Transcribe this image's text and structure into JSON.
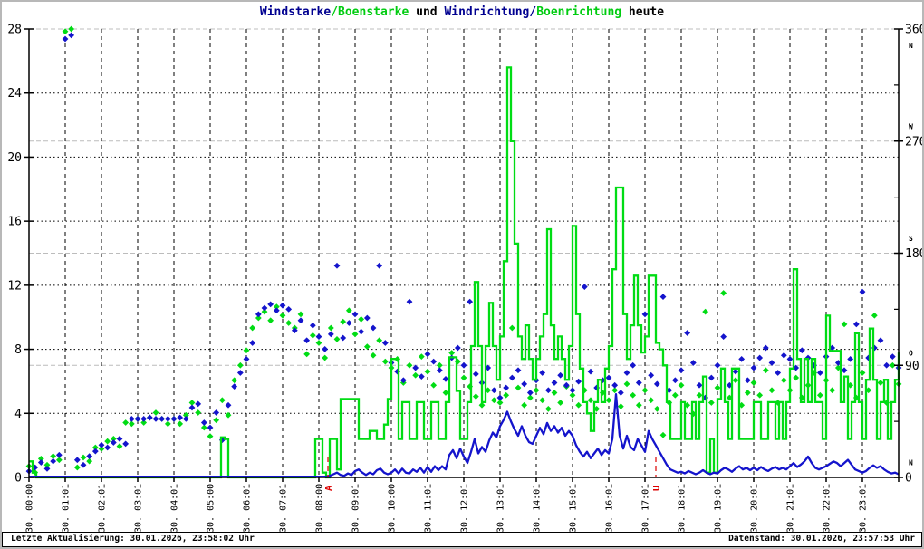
{
  "title": {
    "part1": "Windstarke",
    "slash1": "/",
    "part2": "Boenstarke",
    "mid": " und ",
    "part3": "Windrichtung",
    "slash2": "/",
    "part4": "Boenrichtung",
    "suffix": " heute"
  },
  "statusbar": {
    "left": "Letzte Aktualisierung: 30.01.2026, 23:58:02 Uhr",
    "right": "Datenstand: 30.01.2026, 23:57:53 Uhr"
  },
  "chart_data": {
    "type": "line+scatter",
    "x_axis": {
      "unit": "hour",
      "start": 0,
      "end": 24,
      "tick_step": 1,
      "labels": [
        "30. 00:00",
        "30. 01:01",
        "30. 02:01",
        "30. 03:01",
        "30. 04:01",
        "30. 05:00",
        "30. 06:01",
        "30. 07:01",
        "30. 08:00",
        "30. 09:01",
        "30. 10:00",
        "30. 11:01",
        "30. 12:01",
        "30. 13:01",
        "30. 14:01",
        "30. 15:01",
        "30. 16:01",
        "30. 17:01",
        "30. 18:01",
        "30. 19:01",
        "30. 20:01",
        "30. 21:01",
        "30. 22:01",
        "30. 23:01"
      ]
    },
    "y_left": {
      "min": 0,
      "max": 28,
      "ticks": [
        0,
        4,
        8,
        12,
        16,
        20,
        24,
        28
      ]
    },
    "y_right": {
      "min": 0,
      "max": 360,
      "ticks": [
        0,
        90,
        180,
        270,
        360
      ],
      "compass": [
        {
          "deg": 347,
          "text": "N"
        },
        {
          "deg": 282,
          "text": "W"
        },
        {
          "deg": 192,
          "text": "S"
        },
        {
          "deg": 100,
          "text": "O"
        },
        {
          "deg": 12,
          "text": "N"
        }
      ]
    },
    "colors": {
      "wind": "#1414cc",
      "gust": "#00dc14",
      "grid": "#000000",
      "grid_right": "#bcbcbc",
      "sun": "#dd0000",
      "title_blue": "#000090",
      "title_green": "#00cc10"
    },
    "sun_markers": [
      {
        "hour": 8.25,
        "label": "A"
      },
      {
        "hour": 17.3,
        "label": "U"
      }
    ],
    "series": {
      "boenstarke_line": {
        "name": "Boenstarke",
        "axis": "left",
        "color_key": "gust",
        "render": "step",
        "step_hours": 0.1,
        "values": [
          1,
          0.3,
          0,
          0,
          0,
          0,
          0,
          0,
          0,
          0,
          0,
          0,
          0,
          0,
          0,
          0,
          0,
          0,
          0,
          0,
          0,
          0,
          0,
          0,
          0,
          0,
          0,
          0,
          0,
          0,
          0,
          0,
          0,
          0,
          0,
          0,
          0,
          0,
          0,
          0,
          0,
          0,
          0,
          0,
          0,
          0,
          0,
          0,
          0,
          0,
          0,
          0,
          0,
          2.5,
          2.4,
          0,
          0,
          0,
          0,
          0,
          0,
          0,
          0,
          0,
          0,
          0,
          0,
          0,
          0,
          0,
          0,
          0,
          0,
          0,
          0,
          0,
          0,
          0,
          0,
          2.4,
          2.4,
          0.3,
          0,
          2.4,
          2.4,
          0.5,
          4.9,
          4.9,
          4.9,
          4.9,
          4.9,
          2.4,
          2.4,
          2.4,
          2.9,
          2.9,
          2.4,
          2.4,
          3.3,
          4.9,
          7.4,
          7.4,
          2.4,
          4.7,
          4.7,
          2.4,
          2.4,
          4.7,
          4.7,
          2.4,
          2.4,
          4.7,
          4.7,
          2.4,
          2.4,
          4.7,
          7.5,
          7.5,
          5.4,
          2.4,
          2.4,
          4.7,
          8.2,
          12.2,
          8.2,
          4.7,
          8.2,
          10.9,
          8.2,
          6.1,
          8.8,
          13.5,
          25.6,
          21,
          14.6,
          8.8,
          7.4,
          9.5,
          7.4,
          6.1,
          7.4,
          8.8,
          10.2,
          15.5,
          9.5,
          7.4,
          8.8,
          7.4,
          6.1,
          8.2,
          15.7,
          10.2,
          6.8,
          4.7,
          4,
          2.9,
          4.7,
          6.1,
          4.7,
          6.8,
          8.2,
          13,
          18.1,
          18.1,
          10.2,
          7.4,
          9.5,
          12.6,
          9.5,
          7.8,
          8.8,
          12.6,
          12.6,
          8.4,
          8,
          7,
          4.7,
          2.4,
          2.4,
          2.4,
          4.7,
          2.4,
          2.4,
          4.7,
          2.4,
          4.7,
          6.3,
          0.3,
          2.4,
          0.3,
          4.9,
          6.8,
          4.7,
          2.4,
          6.8,
          6.8,
          2.4,
          2.4,
          2.4,
          2.4,
          4.7,
          4.7,
          2.4,
          2.4,
          4.7,
          4.7,
          2.4,
          4.7,
          2.4,
          4.7,
          6.8,
          13,
          7.4,
          4.7,
          7.4,
          4.7,
          7.4,
          4.7,
          4.7,
          2.4,
          10.1,
          7.9,
          7.9,
          7.9,
          4.7,
          6.3,
          2.4,
          4.7,
          9,
          4.7,
          2.4,
          6.1,
          9.3,
          6.1,
          2.4,
          4.7,
          6.1,
          2.4,
          4.7,
          6.1,
          7.8
        ]
      },
      "windstarke_line": {
        "name": "Windstarke",
        "axis": "left",
        "color_key": "wind",
        "render": "linear",
        "step_hours": 0.1,
        "values": [
          0.05,
          0.05,
          0.05,
          0.05,
          0.05,
          0.05,
          0.05,
          0.05,
          0.05,
          0.05,
          0.05,
          0.05,
          0.05,
          0.05,
          0.05,
          0.05,
          0.05,
          0.05,
          0.05,
          0.05,
          0.05,
          0.05,
          0.05,
          0.05,
          0.05,
          0.05,
          0.05,
          0.05,
          0.05,
          0.05,
          0.05,
          0.05,
          0.05,
          0.05,
          0.05,
          0.05,
          0.05,
          0.05,
          0.05,
          0.05,
          0.05,
          0.05,
          0.05,
          0.05,
          0.05,
          0.05,
          0.05,
          0.05,
          0.05,
          0.05,
          0.05,
          0.05,
          0.05,
          0.05,
          0.05,
          0.05,
          0.05,
          0.05,
          0.05,
          0.05,
          0.05,
          0.05,
          0.05,
          0.05,
          0.05,
          0.05,
          0.05,
          0.05,
          0.05,
          0.05,
          0.05,
          0.05,
          0.05,
          0.05,
          0.05,
          0.05,
          0.05,
          0.05,
          0.05,
          0.05,
          0.05,
          0.05,
          0.05,
          0.1,
          0.2,
          0.3,
          0.15,
          0.1,
          0.25,
          0.15,
          0.4,
          0.5,
          0.3,
          0.15,
          0.3,
          0.2,
          0.45,
          0.55,
          0.3,
          0.2,
          0.3,
          0.5,
          0.25,
          0.55,
          0.3,
          0.25,
          0.5,
          0.35,
          0.6,
          0.3,
          0.65,
          0.35,
          0.7,
          0.45,
          0.7,
          0.5,
          1.4,
          1.7,
          1.2,
          1.8,
          1.3,
          0.9,
          1.6,
          2.4,
          1.5,
          1.9,
          1.6,
          2.3,
          2.8,
          2.5,
          3.2,
          3.6,
          4.1,
          3.5,
          3,
          2.6,
          3.2,
          2.6,
          2.2,
          2.1,
          2.6,
          3.1,
          2.7,
          3.4,
          2.9,
          3.2,
          2.8,
          3.1,
          2.6,
          2.9,
          2.6,
          2,
          1.6,
          1.3,
          1.6,
          1.2,
          1.5,
          1.8,
          1.4,
          1.7,
          1.5,
          2.4,
          5.2,
          2.6,
          1.8,
          2.6,
          1.9,
          1.7,
          2.4,
          2,
          1.6,
          2.9,
          2.4,
          2,
          1.6,
          1.2,
          0.8,
          0.5,
          0.4,
          0.3,
          0.35,
          0.25,
          0.4,
          0.3,
          0.2,
          0.3,
          0.45,
          0.3,
          0.2,
          0.3,
          0.25,
          0.45,
          0.6,
          0.5,
          0.35,
          0.55,
          0.7,
          0.5,
          0.6,
          0.45,
          0.6,
          0.45,
          0.65,
          0.5,
          0.4,
          0.55,
          0.65,
          0.5,
          0.6,
          0.5,
          0.7,
          0.9,
          0.65,
          0.8,
          1,
          1.3,
          0.9,
          0.6,
          0.5,
          0.6,
          0.7,
          0.85,
          1,
          0.9,
          0.7,
          0.9,
          1.1,
          0.8,
          0.5,
          0.4,
          0.3,
          0.4,
          0.6,
          0.75,
          0.6,
          0.7,
          0.5,
          0.35,
          0.25,
          0.3,
          0.2
        ]
      },
      "boenrichtung_dots": {
        "name": "Boenrichtung",
        "axis": "right",
        "color_key": "gust",
        "render": "diamond",
        "step_hours": 0.1666667,
        "values": [
          9,
          4,
          15,
          10,
          17,
          14,
          358,
          360,
          8,
          16,
          13,
          24,
          23,
          29,
          31,
          25,
          44,
          43,
          47,
          44,
          48,
          52,
          47,
          43,
          47,
          43,
          50,
          60,
          52,
          40,
          33,
          46,
          62,
          50,
          78,
          90,
          102,
          120,
          128,
          133,
          126,
          137,
          130,
          124,
          120,
          131,
          99,
          114,
          108,
          96,
          120,
          111,
          125,
          134,
          115,
          127,
          105,
          98,
          110,
          93,
          88,
          95,
          76,
          90,
          82,
          97,
          85,
          74,
          90,
          68,
          100,
          93,
          80,
          73,
          65,
          58,
          70,
          62,
          60,
          66,
          120,
          72,
          58,
          64,
          70,
          62,
          55,
          68,
          60,
          73,
          66,
          58,
          70,
          62,
          55,
          68,
          62,
          70,
          57,
          75,
          66,
          58,
          70,
          62,
          55,
          34,
          60,
          66,
          74,
          58,
          51,
          66,
          133,
          60,
          72,
          148,
          64,
          78,
          58,
          68,
          76,
          66,
          86,
          70,
          60,
          78,
          70,
          80,
          64,
          74,
          84,
          66,
          78,
          70,
          88,
          123,
          74,
          64,
          84,
          70,
          130,
          76,
          60,
          90,
          75
        ]
      },
      "windrichtung_dots": {
        "name": "Windrichtung",
        "axis": "right",
        "color_key": "wind",
        "render": "diamond",
        "step_hours": 0.1666667,
        "values": [
          5,
          8,
          12,
          7,
          13,
          18,
          352,
          355,
          14,
          10,
          17,
          21,
          26,
          24,
          28,
          31,
          27,
          47,
          47,
          47,
          48,
          47,
          47,
          47,
          47,
          48,
          47,
          56,
          59,
          44,
          40,
          52,
          30,
          58,
          73,
          84,
          95,
          108,
          131,
          136,
          139,
          134,
          138,
          135,
          118,
          126,
          110,
          122,
          113,
          103,
          115,
          170,
          112,
          124,
          131,
          117,
          128,
          120,
          170,
          108,
          92,
          85,
          78,
          141,
          88,
          81,
          99,
          93,
          86,
          79,
          96,
          104,
          90,
          141,
          83,
          76,
          88,
          70,
          64,
          72,
          80,
          86,
          75,
          68,
          78,
          84,
          70,
          76,
          82,
          74,
          70,
          77,
          153,
          85,
          72,
          78,
          80,
          74,
          68,
          84,
          90,
          76,
          131,
          82,
          75,
          145,
          70,
          78,
          86,
          116,
          92,
          74,
          64,
          80,
          90,
          113,
          74,
          85,
          95,
          78,
          88,
          96,
          104,
          92,
          84,
          98,
          95,
          88,
          102,
          96,
          90,
          84,
          97,
          104,
          92,
          86,
          95,
          123,
          149,
          96,
          104,
          110,
          90,
          97,
          88
        ]
      }
    }
  }
}
